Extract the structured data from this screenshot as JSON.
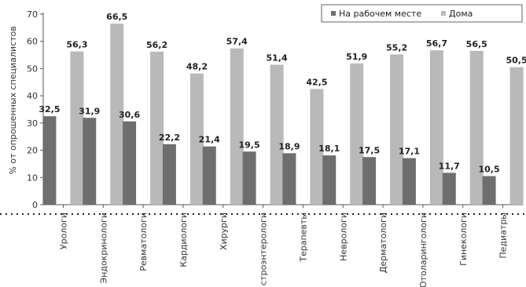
{
  "chart_data": {
    "type": "bar",
    "ylabel": "% от опрошенных специалистов",
    "xlabel": "",
    "ylim": [
      0,
      70
    ],
    "yticks": [
      0,
      10,
      20,
      30,
      40,
      50,
      60,
      70
    ],
    "grid": false,
    "legend_position": "top-right",
    "categories": [
      "Урологи",
      "Эндокринологи",
      "Ревматологи",
      "Кардиологи",
      "Хирурги",
      "строэнтерологи",
      "Терапевты",
      "Неврологи",
      "Дерматологи",
      "Отоларингологи",
      "Гинекологи",
      "Педиатры"
    ],
    "series": [
      {
        "name": "На рабочем месте",
        "color": "#6e6e6e",
        "values": [
          32.5,
          31.9,
          30.6,
          22.2,
          21.4,
          19.5,
          18.9,
          18.1,
          17.5,
          17.1,
          11.7,
          10.5
        ]
      },
      {
        "name": "Дома",
        "color": "#b9b9b9",
        "values": [
          56.3,
          66.5,
          56.2,
          48.2,
          57.4,
          51.4,
          42.5,
          51.9,
          55.2,
          56.7,
          56.5,
          50.5
        ]
      }
    ]
  }
}
